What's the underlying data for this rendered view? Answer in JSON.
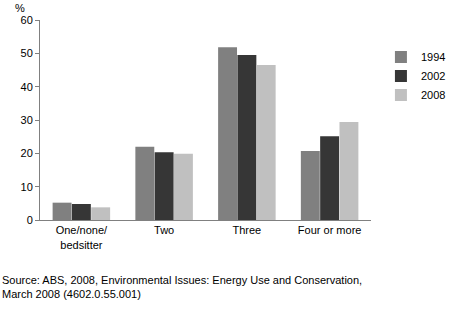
{
  "chart_data": {
    "type": "bar",
    "y_label": "%",
    "categories": [
      "One/none/bedsitter",
      "Two",
      "Three",
      "Four or more"
    ],
    "series": [
      {
        "name": "1994",
        "color": "#808080",
        "values": [
          5.2,
          22.0,
          51.8,
          20.7
        ]
      },
      {
        "name": "2002",
        "color": "#363636",
        "values": [
          4.8,
          20.3,
          49.5,
          25.1
        ]
      },
      {
        "name": "2008",
        "color": "#c0c0c0",
        "values": [
          3.8,
          19.9,
          46.5,
          29.4
        ]
      }
    ],
    "ylim": [
      0,
      60
    ],
    "yticks": [
      0,
      10,
      20,
      30,
      40,
      50,
      60
    ],
    "grid": false,
    "legend": "right",
    "source": [
      "Source: ABS, 2008, Environmental Issues: Energy Use and Conservation,",
      "March 2008 (4602.0.55.001)"
    ]
  }
}
